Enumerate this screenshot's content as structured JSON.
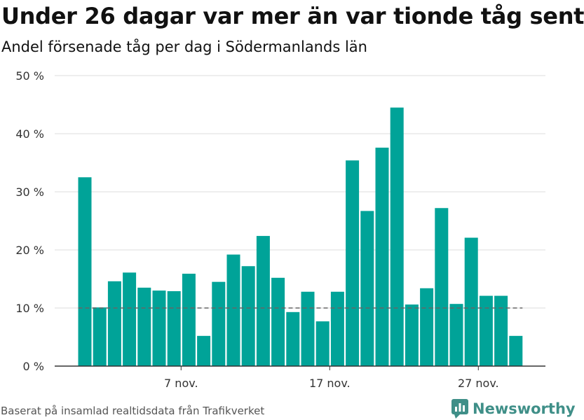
{
  "header": {
    "title": "Under 26 dagar var mer än var tionde tåg sent",
    "subtitle": "Andel försenade tåg per dag i Södermanlands län"
  },
  "footer": {
    "source": "Baserat på insamlad realtidsdata från Trafikverket",
    "brand": "Newsworthy"
  },
  "colors": {
    "bar": "#00a398",
    "reference_line": "#666666",
    "grid": "#dddddd",
    "axis": "#333333",
    "brand": "#3f8f88"
  },
  "chart_data": {
    "type": "bar",
    "title": "Under 26 dagar var mer än var tionde tåg sent",
    "subtitle": "Andel försenade tåg per dag i Södermanlands län",
    "xlabel": "",
    "ylabel": "",
    "x": [
      "2021-11-01",
      "2021-11-02",
      "2021-11-03",
      "2021-11-04",
      "2021-11-05",
      "2021-11-06",
      "2021-11-07",
      "2021-11-08",
      "2021-11-09",
      "2021-11-10",
      "2021-11-11",
      "2021-11-12",
      "2021-11-13",
      "2021-11-14",
      "2021-11-15",
      "2021-11-16",
      "2021-11-17",
      "2021-11-18",
      "2021-11-19",
      "2021-11-20",
      "2021-11-21",
      "2021-11-22",
      "2021-11-23",
      "2021-11-24",
      "2021-11-25",
      "2021-11-26",
      "2021-11-27",
      "2021-11-28",
      "2021-11-29",
      "2021-11-30"
    ],
    "values": [
      32.5,
      10.1,
      14.6,
      16.1,
      13.5,
      13.0,
      12.9,
      15.9,
      5.2,
      14.5,
      19.2,
      17.2,
      22.4,
      15.2,
      9.3,
      12.8,
      7.7,
      12.8,
      35.4,
      26.7,
      37.6,
      44.5,
      10.6,
      13.4,
      27.2,
      10.7,
      22.1,
      12.1,
      12.1,
      5.2
    ],
    "reference_line": 10,
    "ylim": [
      0,
      50
    ],
    "yticks": [
      0,
      10,
      20,
      30,
      40,
      50
    ],
    "ytick_labels": [
      "0 %",
      "10 %",
      "20 %",
      "30 %",
      "40 %",
      "50 %"
    ],
    "xtick_positions": [
      "2021-11-07",
      "2021-11-17",
      "2021-11-27"
    ],
    "xtick_labels": [
      "7 nov.",
      "17 nov.",
      "27 nov."
    ],
    "grid": true,
    "legend": "none"
  }
}
